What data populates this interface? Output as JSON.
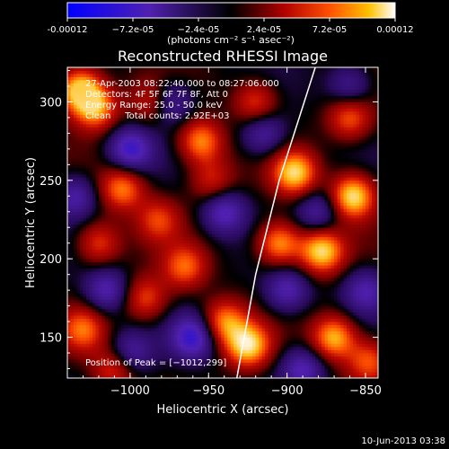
{
  "colorbar": {
    "tick_values": [
      -0.00012,
      -7.2e-05,
      -2.4e-05,
      2.4e-05,
      7.2e-05,
      0.00012
    ],
    "tick_labels": [
      "-0.00012",
      "−7.2e-05",
      "−2.4e-05",
      "2.4e-05",
      "7.2e-05",
      "0.00012"
    ],
    "unit_label": "(photons cm⁻² s⁻¹ asec⁻²)",
    "range": [
      -0.00012,
      0.00012
    ]
  },
  "chart_data": {
    "type": "heatmap",
    "title": "Reconstructed RHESSI Image",
    "xlabel": "Heliocentric X (arcsec)",
    "ylabel": "Heliocentric Y (arcsec)",
    "xlim": [
      -1040,
      -842
    ],
    "ylim": [
      124,
      322
    ],
    "x_ticks": [
      -1000,
      -950,
      -900,
      -850
    ],
    "x_tick_labels": [
      "−1000",
      "−950",
      "−900",
      "−850"
    ],
    "y_ticks": [
      150,
      200,
      250,
      300
    ],
    "y_tick_labels": [
      "150",
      "200",
      "250",
      "300"
    ],
    "colormap": [
      "#0000ff",
      "#5020b0",
      "#000000",
      "#b00000",
      "#ff6000",
      "#ffd020",
      "#ffffff"
    ],
    "annotations": [
      "27-Apr-2003 08:22:40.000 to 08:27:06.000",
      "Detectors: 4F 5F 6F 7F 8F, Att 0",
      "Energy Range: 25.0 - 50.0 keV",
      "Clean     Total counts: 2.92E+03"
    ],
    "peak_label": "Position of Peak = [−1012,299]",
    "peak_position": [
      -1012,
      299
    ],
    "limb_curve": [
      {
        "x": -932,
        "y": 124
      },
      {
        "x": -920,
        "y": 190
      },
      {
        "x": -905,
        "y": 250
      },
      {
        "x": -882,
        "y": 322
      }
    ],
    "blobs": [
      {
        "x": -1032,
        "y": 308,
        "v": 1.0
      },
      {
        "x": -1022,
        "y": 296,
        "v": 0.75
      },
      {
        "x": -1005,
        "y": 245,
        "v": 0.7
      },
      {
        "x": -982,
        "y": 225,
        "v": 0.5
      },
      {
        "x": -955,
        "y": 275,
        "v": 0.75
      },
      {
        "x": -948,
        "y": 250,
        "v": 0.45
      },
      {
        "x": -1030,
        "y": 155,
        "v": 0.6
      },
      {
        "x": -1010,
        "y": 130,
        "v": 0.55
      },
      {
        "x": -990,
        "y": 175,
        "v": 0.55
      },
      {
        "x": -965,
        "y": 195,
        "v": 0.6
      },
      {
        "x": -940,
        "y": 160,
        "v": 0.7
      },
      {
        "x": -925,
        "y": 145,
        "v": 0.95
      },
      {
        "x": -905,
        "y": 210,
        "v": 0.8
      },
      {
        "x": -895,
        "y": 255,
        "v": 0.9
      },
      {
        "x": -878,
        "y": 205,
        "v": 0.95
      },
      {
        "x": -858,
        "y": 240,
        "v": 1.0
      },
      {
        "x": -860,
        "y": 290,
        "v": 0.6
      },
      {
        "x": -870,
        "y": 150,
        "v": 0.85
      },
      {
        "x": -848,
        "y": 135,
        "v": 0.6
      },
      {
        "x": -1020,
        "y": 210,
        "v": 0.55
      },
      {
        "x": -985,
        "y": 300,
        "v": 0.5
      },
      {
        "x": -920,
        "y": 300,
        "v": 0.55
      },
      {
        "x": -1000,
        "y": 270,
        "v": -0.7
      },
      {
        "x": -975,
        "y": 300,
        "v": -0.6
      },
      {
        "x": -940,
        "y": 230,
        "v": -0.6
      },
      {
        "x": -960,
        "y": 150,
        "v": -0.7
      },
      {
        "x": -1015,
        "y": 180,
        "v": -0.55
      },
      {
        "x": -1000,
        "y": 140,
        "v": -0.5
      },
      {
        "x": -900,
        "y": 180,
        "v": -0.55
      },
      {
        "x": -880,
        "y": 230,
        "v": -0.45
      },
      {
        "x": -915,
        "y": 280,
        "v": -0.5
      },
      {
        "x": -850,
        "y": 180,
        "v": -0.5
      },
      {
        "x": -890,
        "y": 130,
        "v": -0.55
      },
      {
        "x": -1035,
        "y": 240,
        "v": -0.5
      },
      {
        "x": -860,
        "y": 310,
        "v": -0.45
      }
    ]
  },
  "footer": {
    "timestamp": "10-Jun-2013 03:38"
  }
}
